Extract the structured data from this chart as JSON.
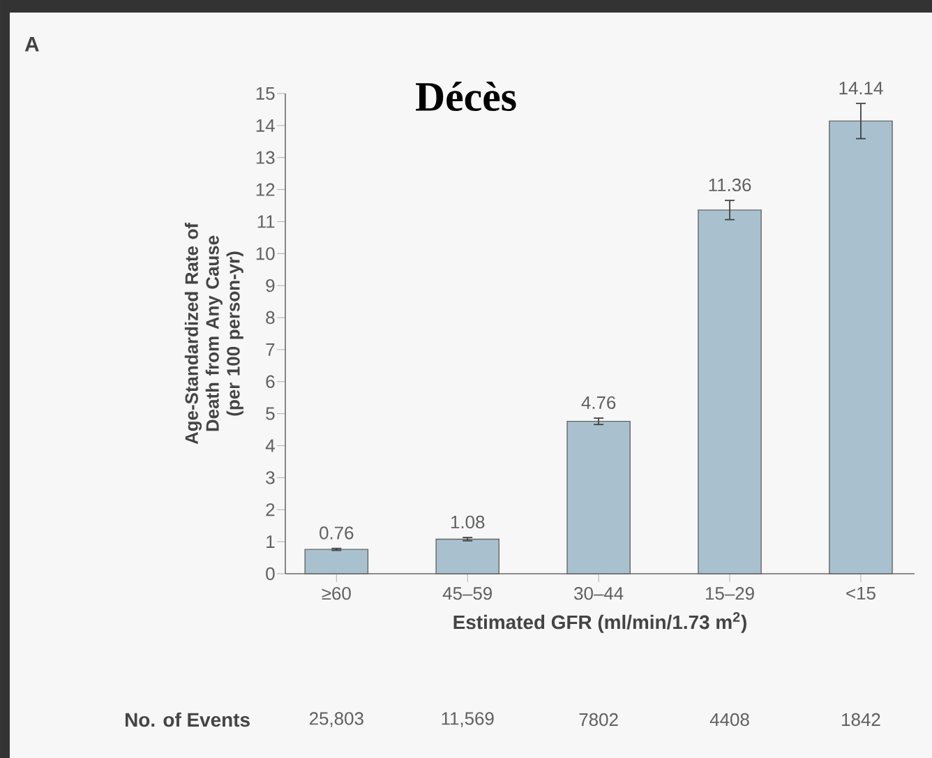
{
  "chart_data": {
    "type": "bar",
    "title": "Décès",
    "ylabel": "Age-Standardized Rate of Death from Any Cause (per 100 person-yr)",
    "xlabel": "Estimated GFR (ml/min/1.73 m$^{2}$)",
    "categories": [
      "≥60",
      "45–59",
      "30–44",
      "15–29",
      "<15"
    ],
    "values": [
      0.76,
      1.08,
      4.76,
      11.36,
      14.14
    ],
    "errors": [
      0.03,
      0.05,
      0.1,
      0.3,
      0.55
    ],
    "color": "#a9c1cf",
    "data_labels": true,
    "ylim": [
      0,
      15
    ],
    "yticks": [
      0,
      1,
      2,
      3,
      4,
      5,
      6,
      7,
      8,
      9,
      10,
      11,
      12,
      13,
      14,
      15
    ],
    "annotations": [
      "A",
      "No. of Events",
      "25,803",
      "11,569",
      "7802",
      "4408",
      "1842"
    ]
  }
}
